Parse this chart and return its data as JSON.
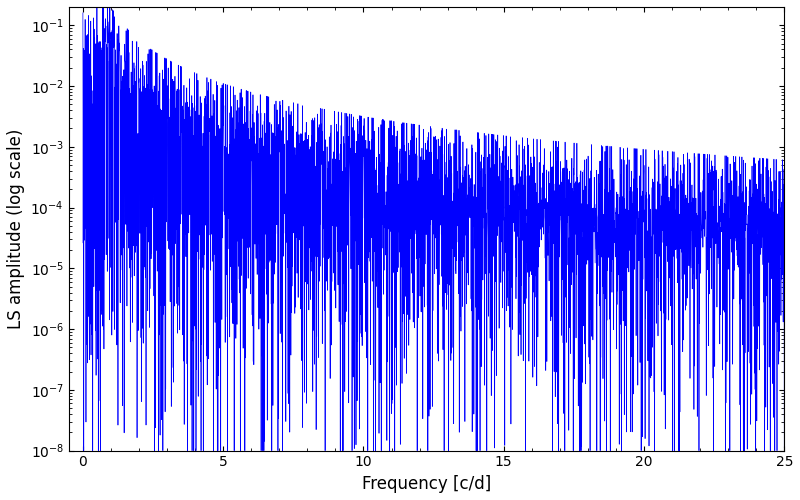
{
  "xlabel": "Frequency [c/d]",
  "ylabel": "LS amplitude (log scale)",
  "xlim": [
    -0.5,
    25
  ],
  "ylim": [
    1e-08,
    0.2
  ],
  "line_color": "#0000ff",
  "line_width": 0.5,
  "bg_color": "#ffffff",
  "figsize": [
    8.0,
    5.0
  ],
  "dpi": 100,
  "seed": 7,
  "n_points": 2500,
  "freq_max": 25.0,
  "xticks": [
    0,
    5,
    10,
    15,
    20,
    25
  ]
}
